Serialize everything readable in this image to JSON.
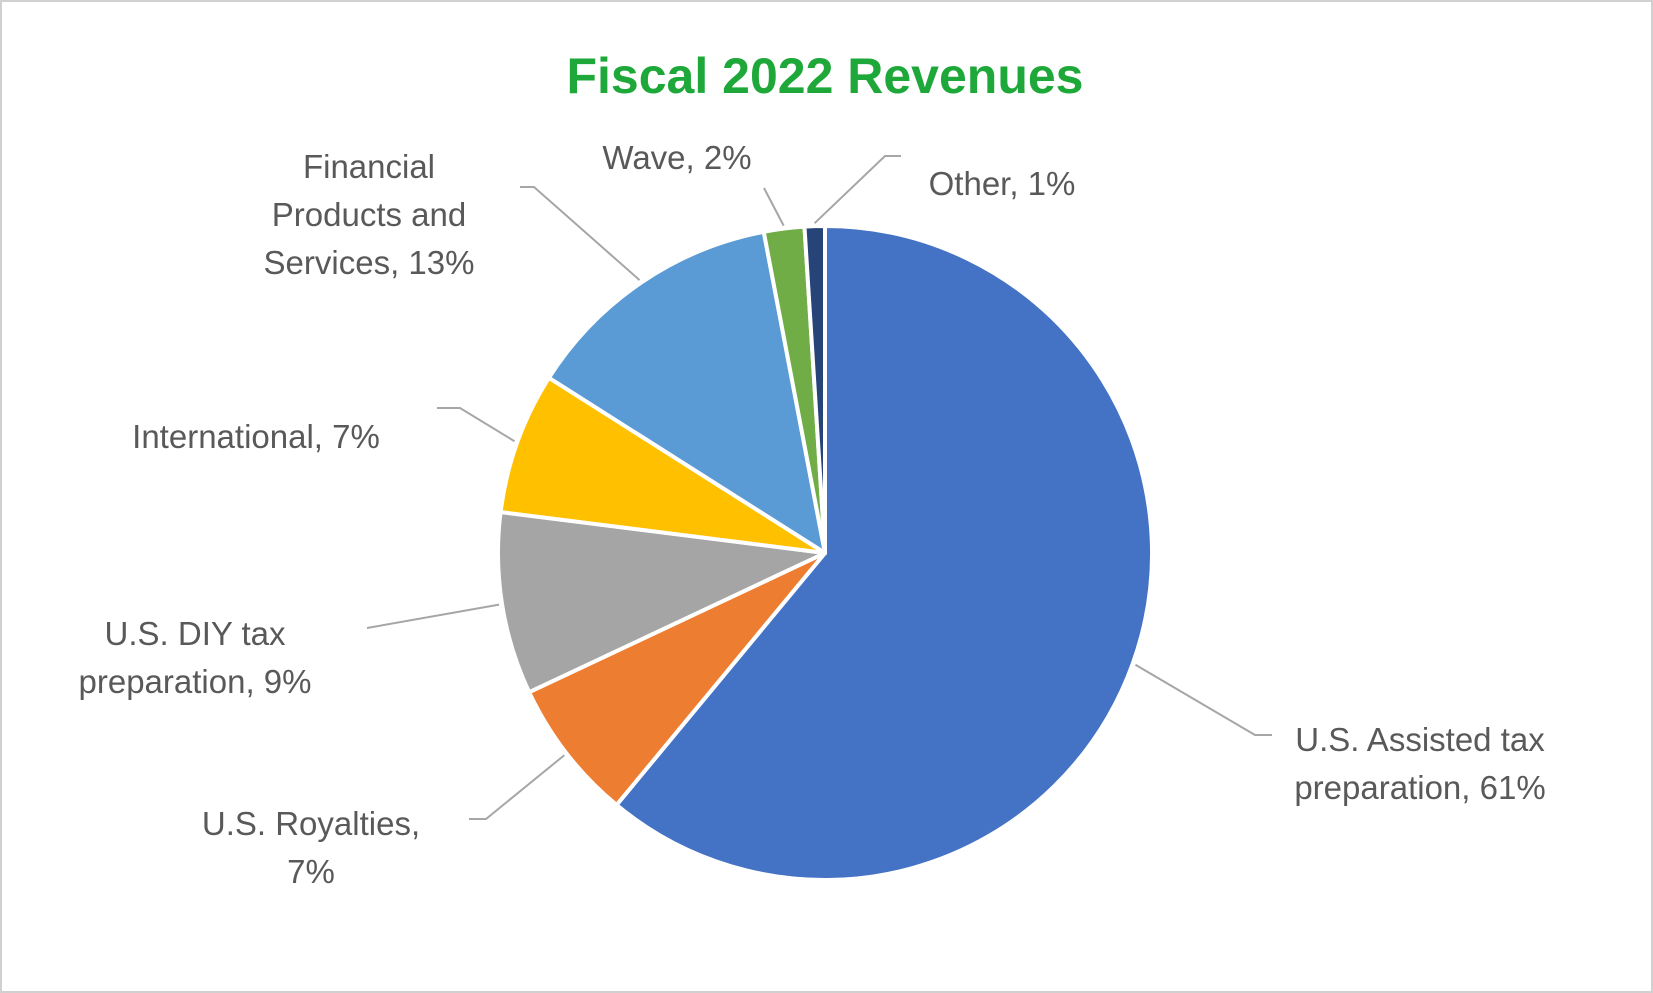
{
  "chart_data": {
    "type": "pie",
    "title": "Fiscal 2022 Revenues",
    "values": [
      61,
      7,
      9,
      7,
      13,
      2,
      1
    ],
    "value_labels": [
      "U.S. Assisted tax preparation, 61%",
      "U.S. Royalties, 7%",
      "U.S. DIY tax preparation, 9%",
      "International, 7%",
      "Financial Products and Services, 13%",
      "Wave, 2%",
      "Other, 1%"
    ],
    "colors": [
      "#4472c4",
      "#ed7d31",
      "#a5a5a5",
      "#ffc000",
      "#5b9bd5",
      "#70ad47",
      "#264478"
    ]
  }
}
